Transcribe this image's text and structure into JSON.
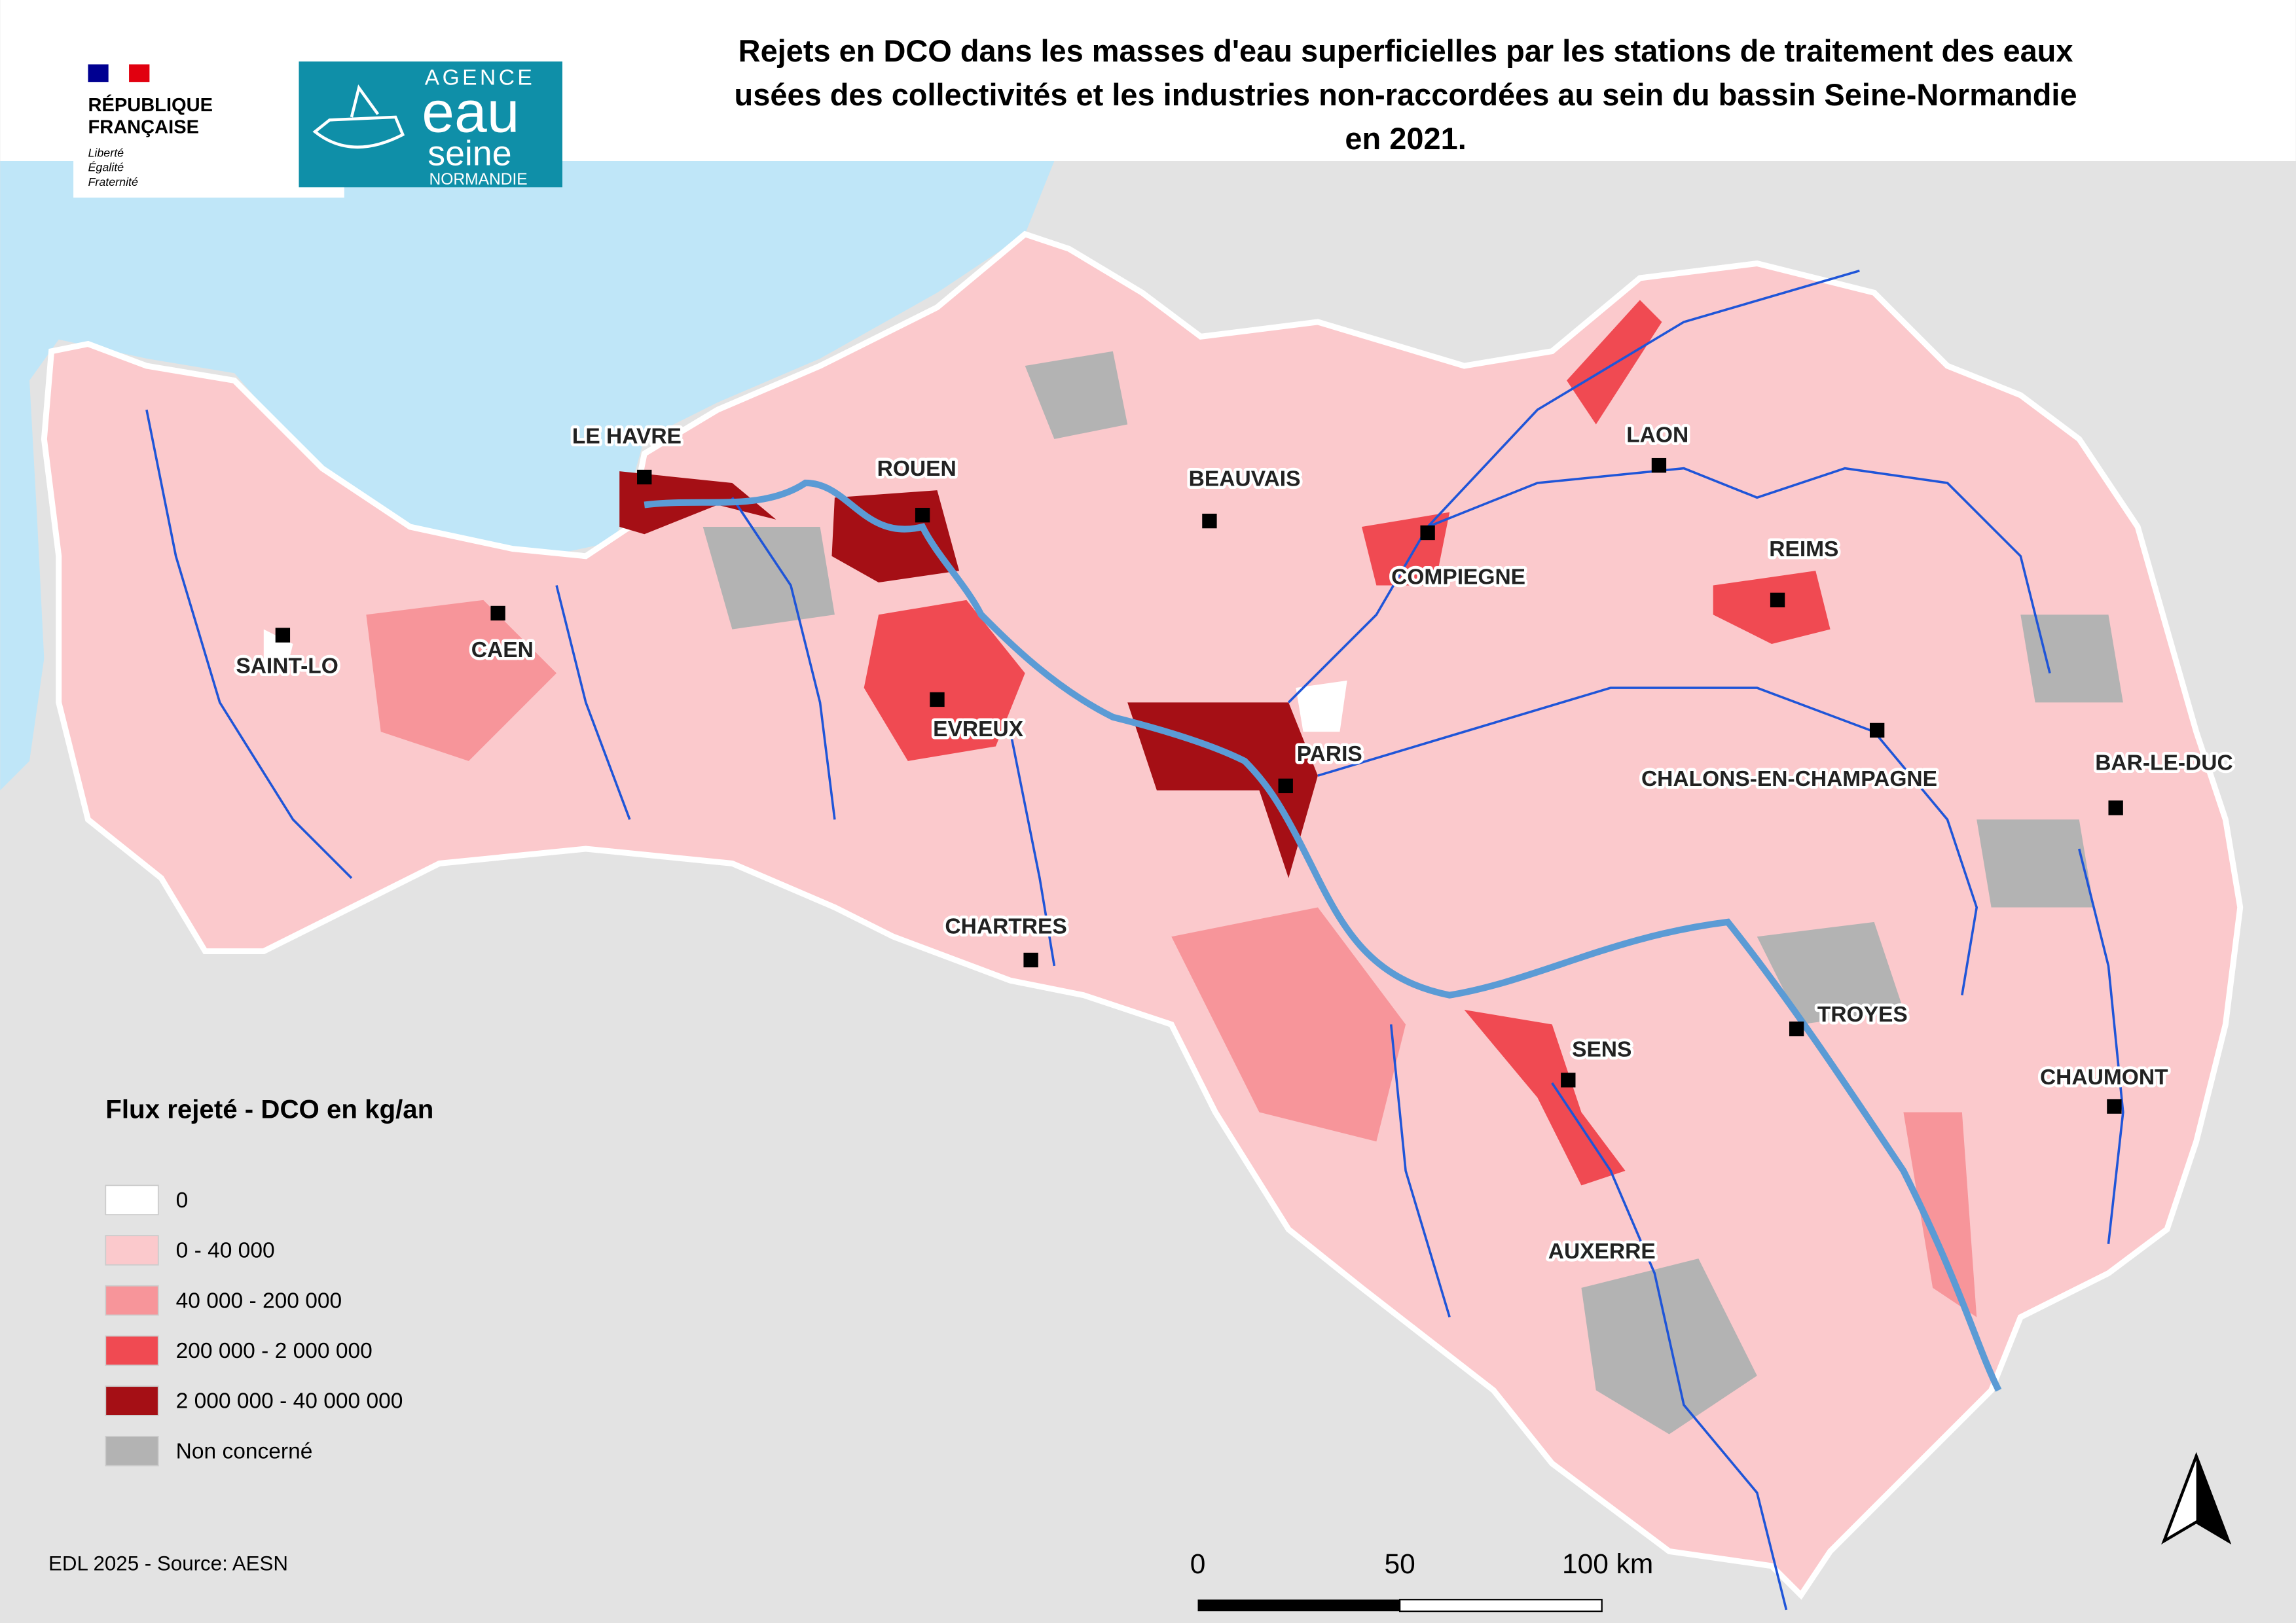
{
  "header": {
    "title_lines": [
      "Rejets en DCO dans les masses d'eau superficielles par les stations de traitement des eaux",
      "usées des collectivités et les industries non-raccordées au sein du bassin Seine-Normandie",
      "en 2021."
    ],
    "republique": [
      "RÉPUBLIQUE",
      "FRANÇAISE"
    ],
    "devise": [
      "Liberté",
      "Égalité",
      "Fraternité"
    ],
    "agence": [
      "AGENCE",
      "eau",
      "seine",
      "NORMANDIE"
    ]
  },
  "cities": [
    "LE HAVRE",
    "ROUEN",
    "BEAUVAIS",
    "LAON",
    "COMPIEGNE",
    "REIMS",
    "SAINT-LO",
    "CAEN",
    "EVREUX",
    "PARIS",
    "CHALONS-EN-CHAMPAGNE",
    "BAR-LE-DUC",
    "CHARTRES",
    "TROYES",
    "SENS",
    "CHAUMONT",
    "AUXERRE"
  ],
  "legend": {
    "title": "Flux rejeté - DCO en kg/an",
    "items": [
      {
        "label": "0",
        "color": "#ffffff"
      },
      {
        "label": "0 - 40 000",
        "color": "#fbc9cc"
      },
      {
        "label": "40 000 - 200 000",
        "color": "#f7959a"
      },
      {
        "label": "200 000 - 2 000 000",
        "color": "#f04a52"
      },
      {
        "label": "2 000 000 - 40 000 000",
        "color": "#a50f15"
      },
      {
        "label": "Non concerné",
        "color": "#b3b3b3"
      }
    ]
  },
  "scale_labels": [
    "0",
    "50",
    "100 km"
  ],
  "source": "EDL 2025 - Source: AESN"
}
